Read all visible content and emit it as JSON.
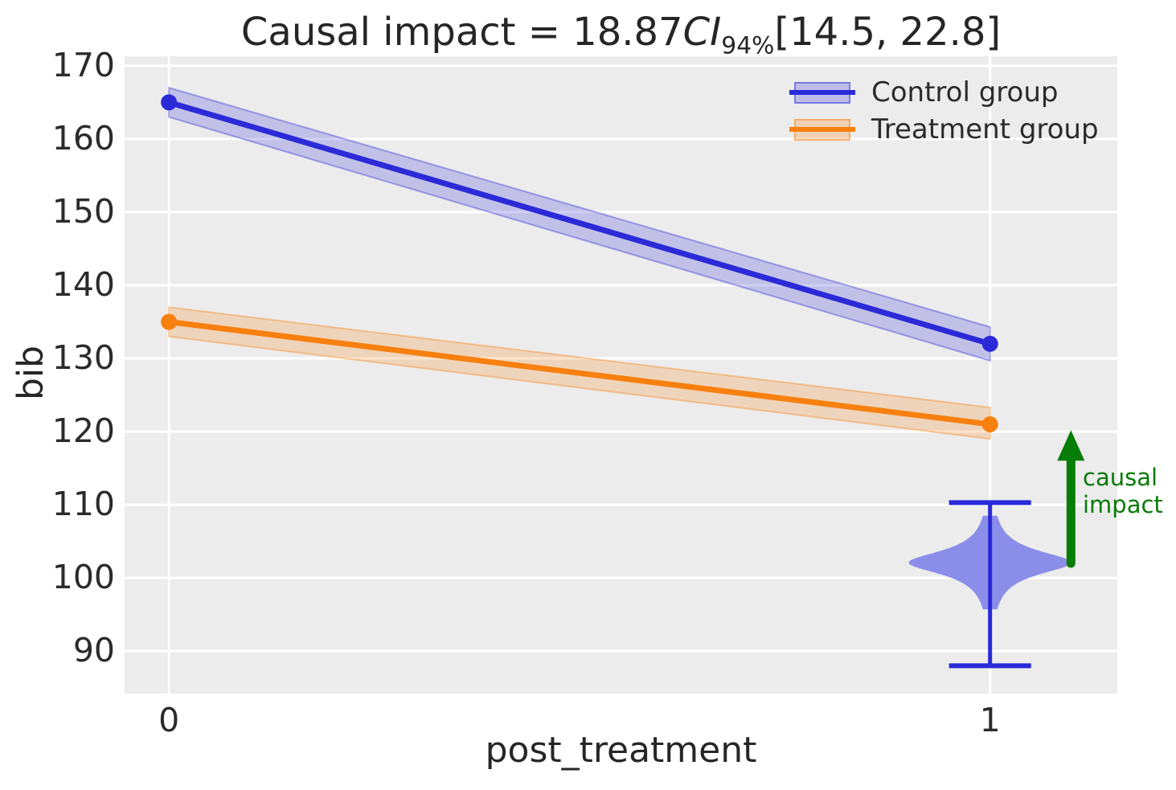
{
  "chart_data": {
    "type": "line",
    "title": "Causal impact = 18.87 CI 94% [14.5, 22.8]",
    "title_parts": {
      "prefix": "Causal impact = 18.87",
      "ci": "CI",
      "sub": "94%",
      "interval": "[14.5, 22.8]"
    },
    "xlabel": "post_treatment",
    "ylabel": "bib",
    "x_ticks": [
      0,
      1
    ],
    "x_tick_labels": [
      "0",
      "1"
    ],
    "y_ticks": [
      90,
      100,
      110,
      120,
      130,
      140,
      150,
      160,
      170
    ],
    "xlim": [
      -0.054,
      1.155
    ],
    "ylim": [
      84.2,
      171.3
    ],
    "grid": true,
    "background": "#ececec",
    "gridline_color": "#ffffff",
    "series": [
      {
        "name": "Control group",
        "x": [
          0,
          1
        ],
        "y": [
          165,
          132
        ],
        "band_low": [
          163,
          129.7
        ],
        "band_high": [
          167,
          134.3
        ],
        "color": "#2a2ad8"
      },
      {
        "name": "Treatment group",
        "x": [
          0,
          1
        ],
        "y": [
          135,
          121
        ],
        "band_low": [
          133,
          119
        ],
        "band_high": [
          137,
          123.3
        ],
        "color": "#f8800e"
      }
    ],
    "legend": {
      "position": "upper right",
      "entries": [
        "Control group",
        "Treatment group"
      ]
    },
    "violin": {
      "x": 1,
      "mode": 102.1,
      "whisker_low": 88,
      "whisker_high": 110.3,
      "max_halfwidth_x": 0.099,
      "cap_halfwidth_x": 0.05,
      "gamma": 2.0,
      "line_color": "#2a2ad8",
      "fill": "#8a8ee9"
    },
    "impact_arrow": {
      "x": 1.0985,
      "from": 102.0,
      "to": 120.2,
      "color": "#067d06",
      "label": "causal impact",
      "label_color": "#077a07"
    },
    "causal_impact_value": 18.87,
    "ci_level": "94%",
    "ci_interval": [
      14.5,
      22.8
    ]
  }
}
